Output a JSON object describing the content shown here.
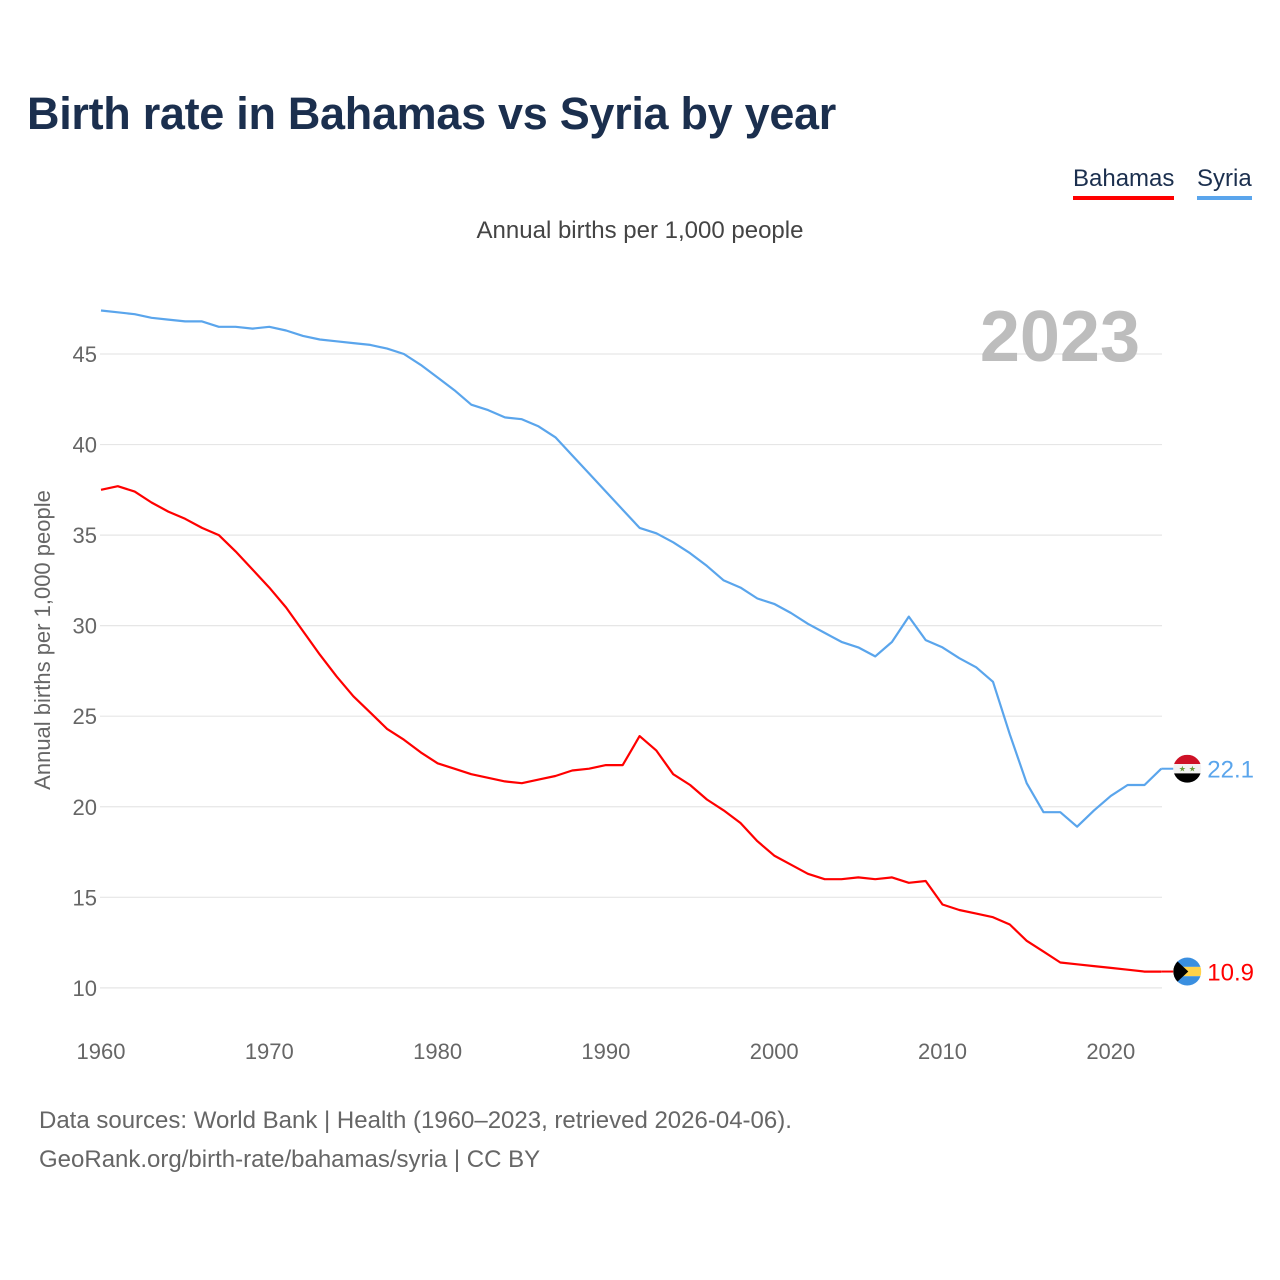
{
  "title": "Birth rate in Bahamas vs Syria by year",
  "subtitle": "Annual births per 1,000 people",
  "legend": [
    "Bahamas",
    "Syria"
  ],
  "footer": {
    "source": "Data sources: World Bank | Health (1960–2023, retrieved 2026-04-06).",
    "url": "GeoRank.org/birth-rate/bahamas/syria | CC BY"
  },
  "chart_data": {
    "type": "line",
    "title": "Birth rate in Bahamas vs Syria by year",
    "ylabel": "Annual births per 1,000 people",
    "xlabel": "",
    "year_label": "2023",
    "xlim": [
      1960,
      2023
    ],
    "ylim": [
      8.5,
      48
    ],
    "xticks": [
      1960,
      1970,
      1980,
      1990,
      2000,
      2010,
      2020
    ],
    "yticks": [
      10,
      15,
      20,
      25,
      30,
      35,
      40,
      45
    ],
    "grid": true,
    "legend_position": "top-right",
    "x_start": 1960,
    "series": [
      {
        "name": "Bahamas",
        "color": "#ff0000",
        "end_label": "10.9",
        "flag": "bahamas-flag",
        "values": [
          37.5,
          37.7,
          37.4,
          36.8,
          36.3,
          35.9,
          35.4,
          35.0,
          34.1,
          33.1,
          32.1,
          31.0,
          29.7,
          28.4,
          27.2,
          26.1,
          25.2,
          24.3,
          23.7,
          23.0,
          22.4,
          22.1,
          21.8,
          21.6,
          21.4,
          21.3,
          21.5,
          21.7,
          22.0,
          22.1,
          22.3,
          22.3,
          23.9,
          23.1,
          21.8,
          21.2,
          20.4,
          19.8,
          19.1,
          18.1,
          17.3,
          16.8,
          16.3,
          16.0,
          16.0,
          16.1,
          16.0,
          16.1,
          15.8,
          15.9,
          14.6,
          14.3,
          14.1,
          13.9,
          13.5,
          12.6,
          12.0,
          11.4,
          11.3,
          11.2,
          11.1,
          11.0,
          10.9,
          10.9
        ]
      },
      {
        "name": "Syria",
        "color": "#5aa5ec",
        "end_label": "22.1",
        "flag": "syria-flag",
        "values": [
          47.4,
          47.3,
          47.2,
          47.0,
          46.9,
          46.8,
          46.8,
          46.5,
          46.5,
          46.4,
          46.5,
          46.3,
          46.0,
          45.8,
          45.7,
          45.6,
          45.5,
          45.3,
          45.0,
          44.4,
          43.7,
          43.0,
          42.2,
          41.9,
          41.5,
          41.4,
          41.0,
          40.4,
          39.4,
          38.4,
          37.4,
          36.4,
          35.4,
          35.1,
          34.6,
          34.0,
          33.3,
          32.5,
          32.1,
          31.5,
          31.2,
          30.7,
          30.1,
          29.6,
          29.1,
          28.8,
          28.3,
          29.1,
          30.5,
          29.2,
          28.8,
          28.2,
          27.7,
          26.9,
          24.0,
          21.3,
          19.7,
          19.7,
          18.9,
          19.8,
          20.6,
          21.2,
          21.2,
          22.1
        ]
      }
    ]
  }
}
